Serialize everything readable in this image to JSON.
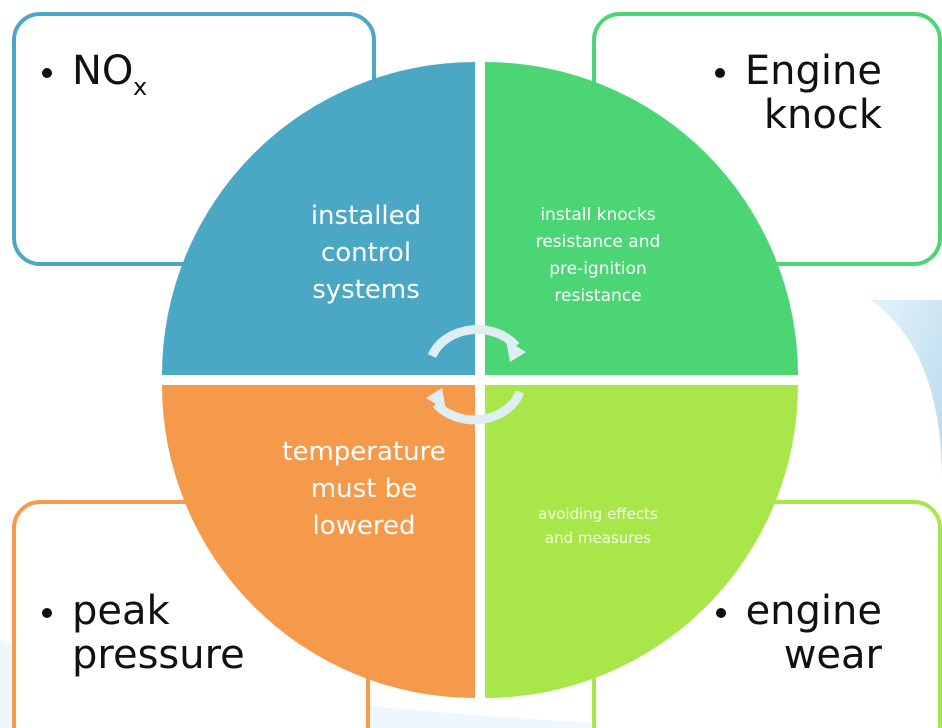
{
  "boxes": [
    {
      "lines": [
        "NO"
      ],
      "subscript": "x"
    },
    {
      "lines": [
        "Engine",
        "knock"
      ]
    },
    {
      "lines": [
        "peak",
        "pressure"
      ]
    },
    {
      "lines": [
        "engine",
        "wear"
      ]
    }
  ],
  "quadrants": [
    {
      "lines": [
        "installed",
        "control",
        "systems"
      ]
    },
    {
      "lines": [
        "install knocks",
        "resistance and",
        "pre-ignition",
        "resistance"
      ]
    },
    {
      "lines": [
        "temperature",
        "must be",
        "lowered"
      ]
    },
    {
      "lines": [
        "avoiding effects",
        "and measures"
      ]
    }
  ]
}
